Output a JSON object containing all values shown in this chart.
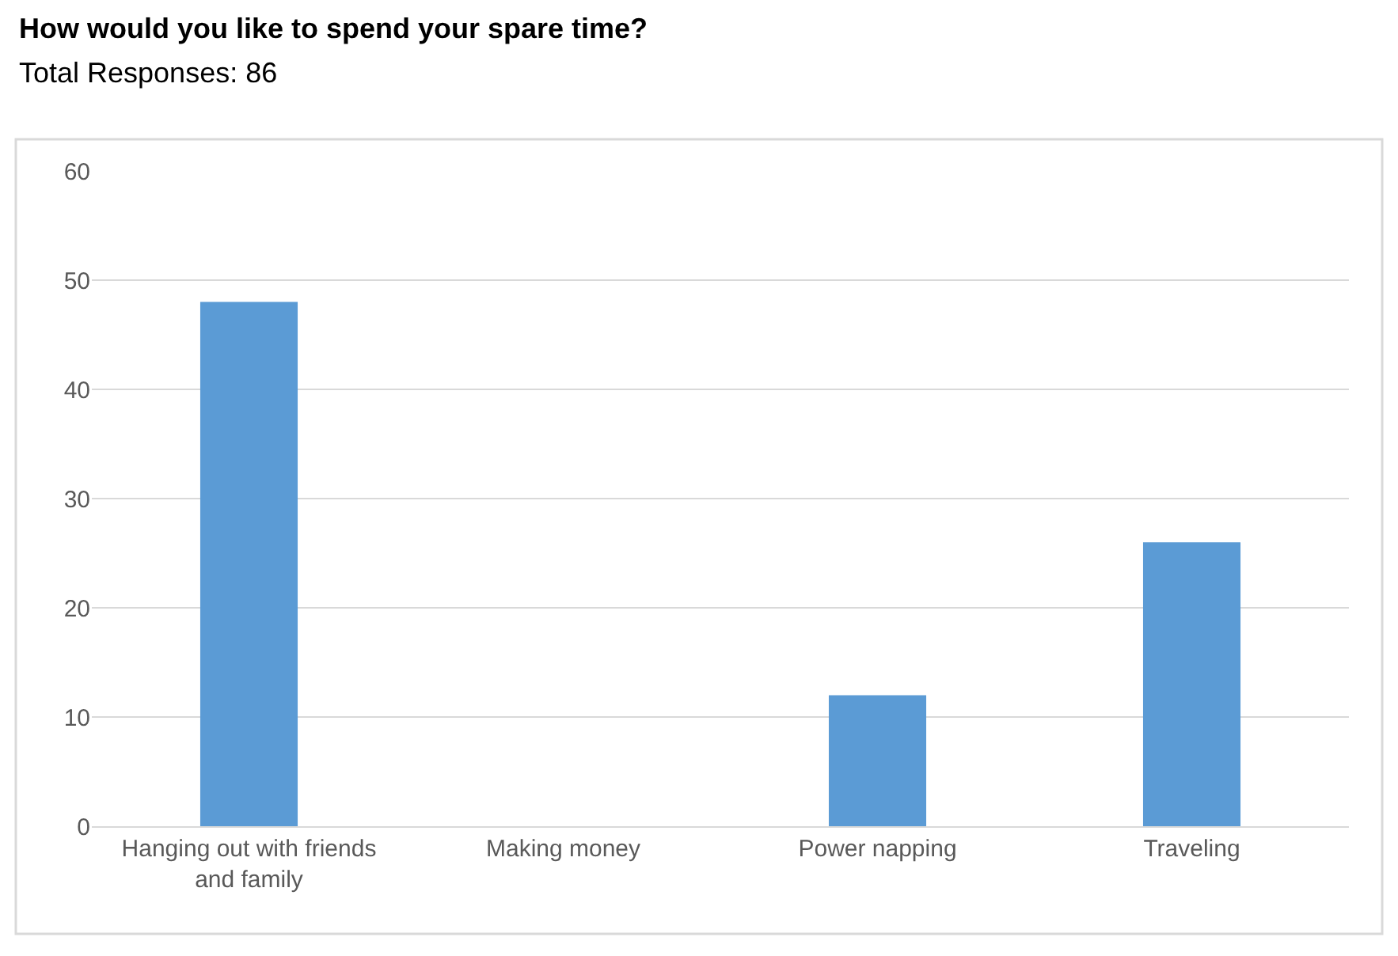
{
  "chart_data": {
    "type": "bar",
    "title": "How would you like to spend your spare time?",
    "subtitle": "Total Responses: 86",
    "categories": [
      "Hanging out with friends and family",
      "Making money",
      "Power napping",
      "Traveling"
    ],
    "values": [
      48,
      0,
      12,
      26
    ],
    "color": "#5b9bd5",
    "ylim": [
      0,
      60
    ],
    "yticks": [
      0,
      10,
      20,
      30,
      40,
      50,
      60
    ],
    "grid": "y",
    "legend": false
  }
}
